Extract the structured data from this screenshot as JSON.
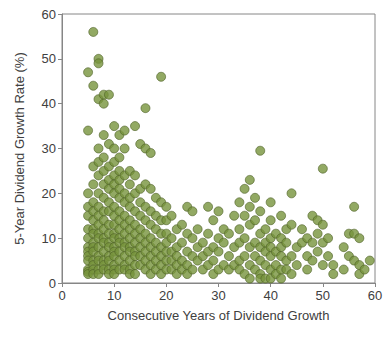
{
  "chart_data": {
    "type": "scatter",
    "x_label": "Consecutive Years of Dividend Growth",
    "y_label": "5-Year Dividend Growth Rate (%)",
    "color": "#77933c",
    "marker": "circle",
    "grid": false,
    "xlim": [
      0,
      60
    ],
    "xticks": [
      0,
      10,
      20,
      30,
      40,
      50,
      60
    ],
    "ylim": [
      0,
      60
    ],
    "yticks": [
      0,
      10,
      20,
      30,
      40,
      50,
      60
    ],
    "x": [
      5,
      5,
      5,
      5,
      5,
      5,
      5,
      5,
      5,
      5,
      5,
      5,
      5,
      5,
      6,
      6,
      6,
      6,
      6,
      6,
      6,
      6,
      6,
      6,
      6,
      6,
      6,
      6,
      6,
      6,
      7,
      7,
      7,
      7,
      7,
      7,
      7,
      7,
      7,
      7,
      7,
      7,
      7,
      7,
      7,
      7,
      7,
      8,
      8,
      8,
      8,
      8,
      8,
      8,
      8,
      8,
      8,
      8,
      8,
      8,
      8,
      8,
      8,
      9,
      9,
      9,
      9,
      9,
      9,
      9,
      9,
      9,
      9,
      9,
      9,
      9,
      9,
      9,
      10,
      10,
      10,
      10,
      10,
      10,
      10,
      10,
      10,
      10,
      10,
      10,
      10,
      10,
      10,
      10,
      10,
      11,
      11,
      11,
      11,
      11,
      11,
      11,
      11,
      11,
      11,
      11,
      11,
      11,
      11,
      12,
      12,
      12,
      12,
      12,
      12,
      12,
      12,
      12,
      12,
      12,
      12,
      12,
      13,
      13,
      13,
      13,
      13,
      13,
      13,
      13,
      13,
      13,
      13,
      13,
      14,
      14,
      14,
      14,
      14,
      14,
      14,
      14,
      14,
      14,
      14,
      15,
      15,
      15,
      15,
      15,
      15,
      15,
      15,
      15,
      16,
      16,
      16,
      16,
      16,
      16,
      16,
      16,
      16,
      16,
      17,
      17,
      17,
      17,
      17,
      17,
      17,
      17,
      17,
      18,
      18,
      18,
      18,
      18,
      18,
      18,
      19,
      19,
      19,
      19,
      19,
      19,
      19,
      19,
      20,
      20,
      20,
      20,
      20,
      20,
      20,
      21,
      21,
      21,
      21,
      21,
      22,
      22,
      22,
      22,
      22,
      23,
      23,
      23,
      23,
      24,
      24,
      24,
      24,
      24,
      25,
      25,
      25,
      25,
      26,
      26,
      26,
      27,
      27,
      27,
      28,
      28,
      28,
      28,
      29,
      29,
      29,
      29,
      30,
      30,
      30,
      30,
      31,
      31,
      31,
      32,
      32,
      32,
      33,
      33,
      33,
      34,
      34,
      34,
      34,
      34,
      35,
      35,
      35,
      35,
      35,
      36,
      36,
      36,
      36,
      36,
      36,
      37,
      37,
      37,
      37,
      37,
      38,
      38,
      38,
      38,
      38,
      38,
      38,
      39,
      39,
      39,
      39,
      39,
      40,
      40,
      40,
      40,
      40,
      40,
      40,
      41,
      41,
      41,
      41,
      42,
      42,
      42,
      42,
      42,
      42,
      43,
      43,
      43,
      43,
      44,
      44,
      44,
      44,
      45,
      45,
      46,
      46,
      47,
      47,
      47,
      48,
      48,
      48,
      49,
      49,
      49,
      50,
      50,
      50,
      50,
      51,
      51,
      52,
      52,
      54,
      54,
      55,
      55,
      56,
      56,
      56,
      57,
      57,
      57,
      58,
      59
    ],
    "values": [
      47,
      34,
      20,
      17,
      15,
      12,
      10,
      8,
      7,
      6,
      5,
      3,
      2.5,
      2,
      56,
      44,
      26,
      22,
      18,
      16,
      14,
      12,
      11,
      9,
      8,
      7,
      5,
      4,
      3,
      2,
      50,
      49,
      41,
      30,
      27,
      24,
      20,
      17,
      15,
      13,
      11,
      10,
      8,
      6,
      5,
      3,
      2,
      42,
      40,
      33,
      28,
      25,
      22,
      19,
      16,
      14,
      12,
      10,
      9,
      7,
      5,
      4,
      3,
      42,
      31,
      26,
      23,
      21,
      18,
      16,
      13,
      11,
      9,
      8,
      6,
      5,
      3,
      2,
      35,
      30,
      27,
      24,
      22,
      20,
      17,
      15,
      13,
      11,
      10,
      8,
      7,
      6,
      4,
      3,
      2,
      33,
      28,
      25,
      23,
      21,
      19,
      16,
      14,
      12,
      10,
      9,
      7,
      5,
      3,
      34,
      30,
      24,
      20,
      18,
      15,
      13,
      11,
      9,
      8,
      6,
      4,
      3,
      25,
      22,
      19,
      17,
      14,
      12,
      10,
      8,
      7,
      5,
      3,
      2,
      35,
      24,
      20,
      16,
      13,
      11,
      9,
      7,
      6,
      4,
      2,
      31,
      21,
      18,
      15,
      12,
      10,
      8,
      6,
      4,
      39,
      30,
      22,
      17,
      14,
      11,
      9,
      7,
      5,
      3,
      29,
      21,
      16,
      13,
      10,
      8,
      6,
      4,
      2,
      19,
      15,
      12,
      9,
      7,
      5,
      3,
      46,
      18,
      14,
      11,
      8,
      6,
      4,
      2,
      17,
      14,
      11,
      9,
      7,
      5,
      3,
      15,
      10,
      7,
      5,
      3,
      12,
      8,
      6,
      4,
      2,
      13,
      9,
      5,
      3,
      17,
      11,
      7,
      4,
      2,
      16,
      10,
      6,
      3,
      12,
      8,
      5,
      9,
      6,
      3,
      17,
      11,
      7,
      4,
      14,
      8,
      5,
      2,
      16,
      10,
      7,
      3,
      12,
      9,
      4,
      11,
      6,
      3,
      15,
      8,
      4,
      18,
      12,
      9,
      5,
      3,
      21,
      15,
      10,
      6,
      2,
      23,
      17,
      13,
      8,
      4,
      1,
      19,
      14,
      9,
      6,
      3,
      29.5,
      16,
      11,
      8,
      5,
      2,
      1,
      12,
      9,
      7,
      4,
      1,
      18,
      14,
      10,
      8,
      6,
      3,
      1,
      11,
      7,
      4,
      2,
      15,
      10,
      8,
      6,
      3,
      1,
      12,
      9,
      5,
      3,
      20,
      13,
      6,
      2,
      8,
      4,
      12,
      9,
      10,
      6,
      3,
      15,
      9,
      5,
      14,
      11,
      7,
      25.5,
      13,
      9,
      4,
      10,
      6,
      4,
      2,
      8,
      3,
      11,
      6,
      17,
      11,
      5,
      10,
      4,
      2,
      3,
      5
    ]
  }
}
